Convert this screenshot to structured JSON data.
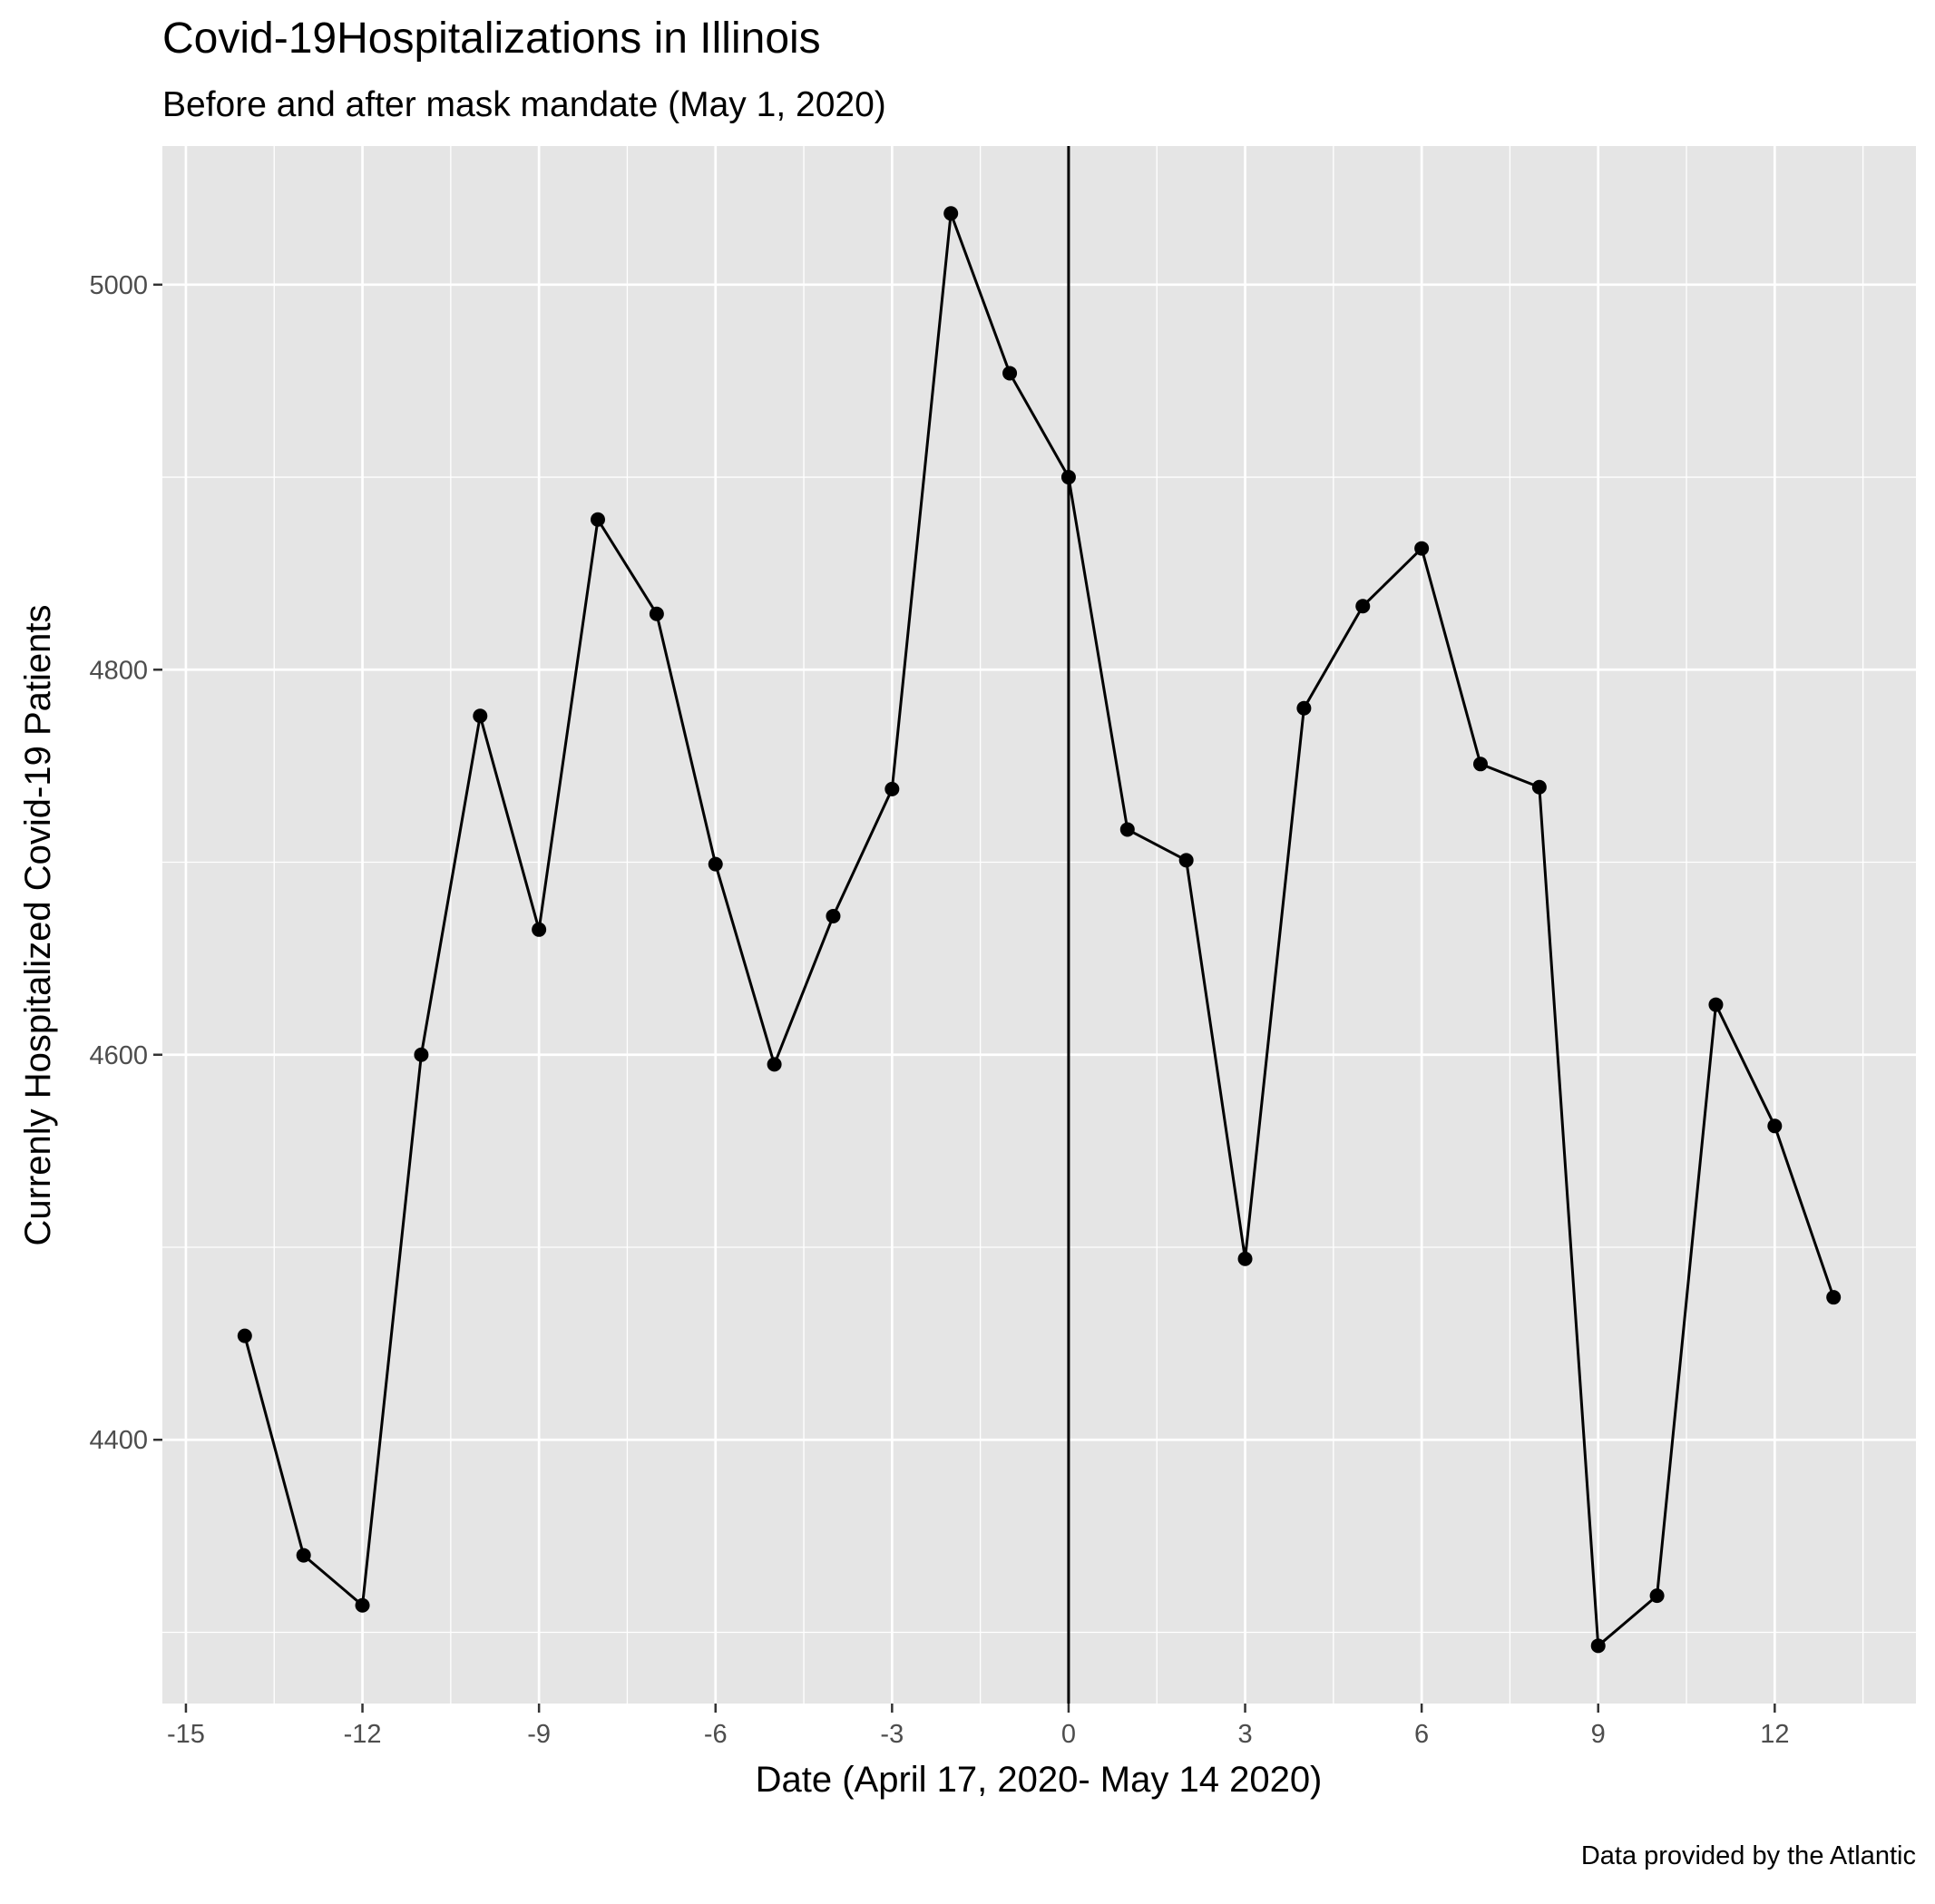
{
  "chart_data": {
    "type": "line",
    "title": "Covid-19Hospitalizations in Illinois",
    "subtitle": "Before and after mask mandate (May 1, 2020)",
    "xlabel": "Date (April 17, 2020- May 14 2020)",
    "ylabel": "Currenly Hospitalized Covid-19 Patients",
    "caption": "Data provided by the Atlantic",
    "x_ticks": [
      "-15",
      "-12",
      "-9",
      "-6",
      "-3",
      "0",
      "3",
      "6",
      "9",
      "12"
    ],
    "y_ticks": [
      "4400",
      "4600",
      "4800",
      "5000"
    ],
    "xlim": [
      -15.4,
      14.4
    ],
    "ylim": [
      4263,
      5072
    ],
    "vline_x": 0,
    "grid": true,
    "colors": {
      "panel_background": "#e5e5e5",
      "grid": "#ffffff",
      "line": "#000000",
      "point": "#000000",
      "vline": "#000000"
    },
    "series": [
      {
        "x": [
          -14,
          -13,
          -12,
          -11,
          -10,
          -9,
          -8,
          -7,
          -6,
          -5,
          -4,
          -3,
          -2,
          -1,
          0,
          1,
          2,
          3,
          4,
          5,
          6,
          7,
          8,
          9,
          10,
          11,
          12,
          13
        ],
        "values": [
          4454,
          4340,
          4314,
          4600,
          4776,
          4665,
          4878,
          4829,
          4699,
          4595,
          4672,
          4738,
          5037,
          4954,
          4900,
          4717,
          4701,
          4494,
          4780,
          4833,
          4863,
          4751,
          4739,
          4293,
          4319,
          4626,
          4563,
          4474
        ]
      }
    ]
  }
}
